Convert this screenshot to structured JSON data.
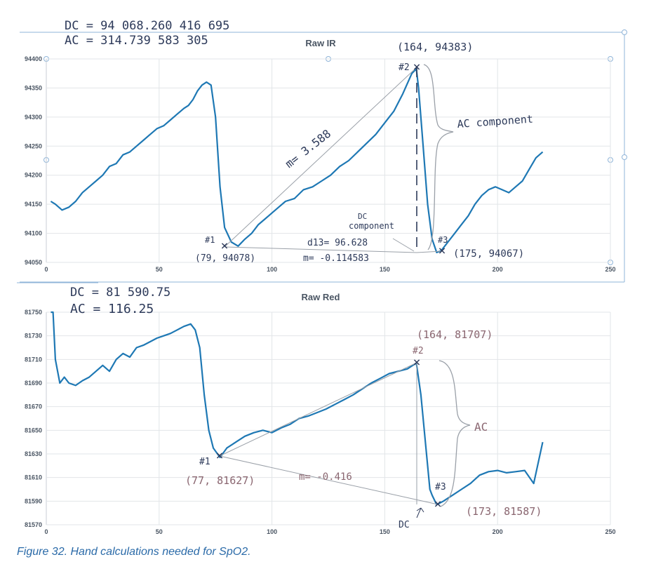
{
  "caption": "Figure 32. Hand calculations needed for SpO2.",
  "colors": {
    "line_ir": "#1e78b4",
    "line_red": "#1e78b4",
    "grid": "#e2e5e8",
    "ink": "#2d3a5a",
    "accent_red": "#8a6670"
  },
  "chart_data": [
    {
      "type": "line",
      "title": "Raw IR",
      "xlim": [
        0,
        250
      ],
      "ylim": [
        94050,
        94400
      ],
      "x_ticks": [
        0,
        50,
        100,
        150,
        200,
        250
      ],
      "y_ticks": [
        94050,
        94100,
        94150,
        94200,
        94250,
        94300,
        94350,
        94400
      ],
      "grid": true,
      "series": [
        {
          "x": [
            2,
            4,
            7,
            10,
            13,
            16,
            19,
            22,
            25,
            28,
            31,
            34,
            37,
            40,
            43,
            46,
            49,
            52,
            55,
            58,
            61,
            63,
            65,
            67,
            69,
            71,
            73,
            75,
            77,
            79,
            82,
            85,
            88,
            91,
            94,
            97,
            100,
            103,
            106,
            110,
            114,
            118,
            122,
            126,
            130,
            134,
            138,
            142,
            146,
            150,
            154,
            158,
            162,
            164,
            165,
            167,
            169,
            171,
            173,
            175,
            178,
            181,
            184,
            187,
            190,
            193,
            196,
            199,
            202,
            205,
            208,
            211,
            214,
            217,
            220
          ],
          "y": [
            94155,
            94150,
            94140,
            94145,
            94155,
            94170,
            94180,
            94190,
            94200,
            94215,
            94220,
            94235,
            94240,
            94250,
            94260,
            94270,
            94280,
            94285,
            94295,
            94305,
            94315,
            94320,
            94330,
            94345,
            94355,
            94360,
            94355,
            94300,
            94180,
            94110,
            94085,
            94078,
            94090,
            94100,
            94115,
            94125,
            94135,
            94145,
            94155,
            94160,
            94175,
            94180,
            94190,
            94200,
            94215,
            94225,
            94240,
            94255,
            94270,
            94290,
            94310,
            94340,
            94375,
            94383,
            94350,
            94250,
            94150,
            94090,
            94067,
            94070,
            94085,
            94100,
            94115,
            94130,
            94150,
            94165,
            94175,
            94180,
            94175,
            94170,
            94180,
            94190,
            94210,
            94230,
            94240
          ]
        }
      ],
      "annotations": [
        {
          "text": "DC = 94 068.260 416 695",
          "kind": "handwritten"
        },
        {
          "text": "AC = 314.739 583   305",
          "kind": "handwritten"
        },
        {
          "text": "(164, 94383)",
          "kind": "handwritten"
        },
        {
          "text": "#2",
          "kind": "handwritten"
        },
        {
          "text": "AC component",
          "kind": "handwritten"
        },
        {
          "text": "m= 3.588",
          "kind": "handwritten"
        },
        {
          "text": "DC",
          "kind": "handwritten"
        },
        {
          "text": "component",
          "kind": "handwritten"
        },
        {
          "text": "#1",
          "kind": "handwritten"
        },
        {
          "text": "(79, 94078)",
          "kind": "handwritten"
        },
        {
          "text": "d13= 96.628",
          "kind": "handwritten"
        },
        {
          "text": "m= -0.114583",
          "kind": "handwritten"
        },
        {
          "text": "#3",
          "kind": "handwritten"
        },
        {
          "text": "(175, 94067)",
          "kind": "handwritten"
        }
      ]
    },
    {
      "type": "line",
      "title": "Raw Red",
      "xlim": [
        0,
        250
      ],
      "ylim": [
        81570,
        81750
      ],
      "x_ticks": [
        0,
        50,
        100,
        150,
        200,
        250
      ],
      "y_ticks": [
        81570,
        81590,
        81610,
        81630,
        81650,
        81670,
        81690,
        81710,
        81730,
        81750
      ],
      "grid": true,
      "series": [
        {
          "x": [
            2,
            3,
            4,
            5,
            6,
            8,
            10,
            13,
            16,
            19,
            22,
            25,
            28,
            31,
            34,
            37,
            40,
            43,
            46,
            49,
            52,
            55,
            58,
            61,
            64,
            66,
            68,
            70,
            72,
            74,
            77,
            80,
            84,
            88,
            92,
            96,
            100,
            104,
            108,
            112,
            116,
            120,
            124,
            128,
            132,
            136,
            140,
            144,
            148,
            152,
            156,
            160,
            164,
            166,
            168,
            170,
            171,
            173,
            176,
            180,
            184,
            188,
            192,
            196,
            200,
            204,
            208,
            212,
            216,
            220
          ],
          "y": [
            81750,
            81750,
            81710,
            81700,
            81690,
            81695,
            81690,
            81688,
            81692,
            81695,
            81700,
            81705,
            81700,
            81710,
            81715,
            81712,
            81720,
            81722,
            81725,
            81728,
            81730,
            81732,
            81735,
            81738,
            81740,
            81735,
            81720,
            81680,
            81650,
            81635,
            81627,
            81635,
            81640,
            81645,
            81648,
            81650,
            81648,
            81652,
            81655,
            81660,
            81662,
            81665,
            81668,
            81672,
            81676,
            81680,
            81685,
            81690,
            81694,
            81698,
            81700,
            81702,
            81707,
            81680,
            81640,
            81600,
            81595,
            81587,
            81590,
            81595,
            81600,
            81605,
            81612,
            81615,
            81616,
            81614,
            81615,
            81616,
            81605,
            81640
          ]
        }
      ],
      "annotations": [
        {
          "text": "DC = 81 590.75",
          "kind": "handwritten"
        },
        {
          "text": "AC = 116.25",
          "kind": "handwritten"
        },
        {
          "text": "(164, 81707)",
          "kind": "handwritten"
        },
        {
          "text": "#2",
          "kind": "handwritten"
        },
        {
          "text": "AC",
          "kind": "handwritten"
        },
        {
          "text": "#1",
          "kind": "handwritten"
        },
        {
          "text": "(77, 81627)",
          "kind": "handwritten"
        },
        {
          "text": "m= -0.416",
          "kind": "handwritten"
        },
        {
          "text": "#3",
          "kind": "handwritten"
        },
        {
          "text": "(173, 81587)",
          "kind": "handwritten"
        },
        {
          "text": "DC",
          "kind": "handwritten"
        }
      ]
    }
  ]
}
